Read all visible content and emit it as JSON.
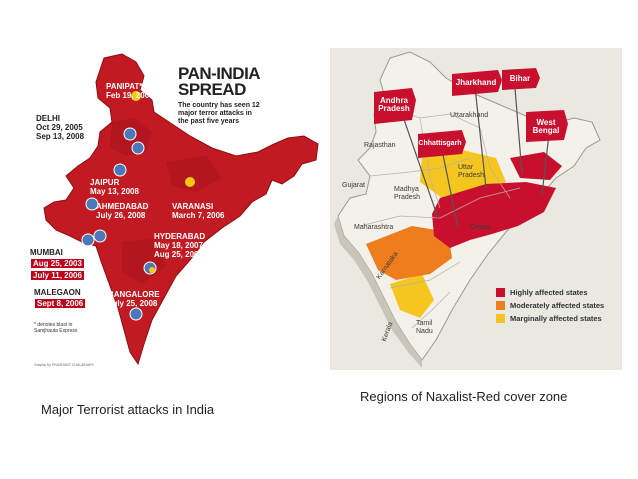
{
  "left_map": {
    "title_line1": "PAN-INDIA",
    "title_line2": "SPREAD",
    "subtitle": "The country has seen 12 major terror attacks in the past five years",
    "cities": {
      "panipat": {
        "name": "PANIPAT*",
        "date": "Feb 19, 2007"
      },
      "delhi": {
        "name": "DELHI",
        "date1": "Oct 29, 2005",
        "date2": "Sep 13, 2008"
      },
      "jaipur": {
        "name": "JAIPUR",
        "date": "May 13, 2008"
      },
      "ahmedabad": {
        "name": "AHMEDABAD",
        "date": "July 26, 2008"
      },
      "varanasi": {
        "name": "VARANASI",
        "date": "March 7, 2006"
      },
      "hyderabad": {
        "name": "HYDERABAD",
        "date1": "May 18, 2007",
        "date2": "Aug 25, 2007"
      },
      "mumbai": {
        "name": "MUMBAI",
        "date1": "Aug 25, 2003",
        "date2": "July 11, 2006"
      },
      "malegaon": {
        "name": "MALEGAON",
        "date": "Sept 8, 2006"
      },
      "bangalore": {
        "name": "BANGALORE",
        "date": "July 25, 2008"
      }
    },
    "footnote": "* denotes blast in Samjhauta Express",
    "credit": "Graphic by PRASHANT CHAUDHARY",
    "colors": {
      "land": "#c21a22",
      "land_dark": "#9c0f16",
      "marker": "#4a78b8",
      "burst": "#f6c814"
    }
  },
  "right_map": {
    "flags": [
      {
        "label1": "Andhra",
        "label2": "Pradesh"
      },
      {
        "label1": "Jharkhand",
        "label2": ""
      },
      {
        "label1": "Bihar",
        "label2": ""
      },
      {
        "label1": "Chhattisgarh",
        "label2": ""
      },
      {
        "label1": "West",
        "label2": "Bengal"
      }
    ],
    "states": {
      "uttarakhand": "Uttarakhand",
      "rajasthan": "Rajasthan",
      "uttar_pradesh_1": "Uttar",
      "uttar_pradesh_2": "Pradesh",
      "gujarat": "Gujarat",
      "madhya_1": "Madhya",
      "madhya_2": "Pradesh",
      "maharashtra": "Maharashtra",
      "orissa": "Orissa",
      "karnataka": "Karnataka",
      "tamil_1": "Tamil",
      "tamil_2": "Nadu",
      "kerala": "Kerala"
    },
    "legend": [
      {
        "label": "Highly affected states",
        "color": "#c8102e"
      },
      {
        "label": "Moderately affected states",
        "color": "#ee7d1e"
      },
      {
        "label": "Marginally affected states",
        "color": "#f5c61f"
      }
    ]
  },
  "captions": {
    "left": "Major Terrorist attacks in India",
    "right": "Regions of Naxalist-Red cover zone"
  }
}
